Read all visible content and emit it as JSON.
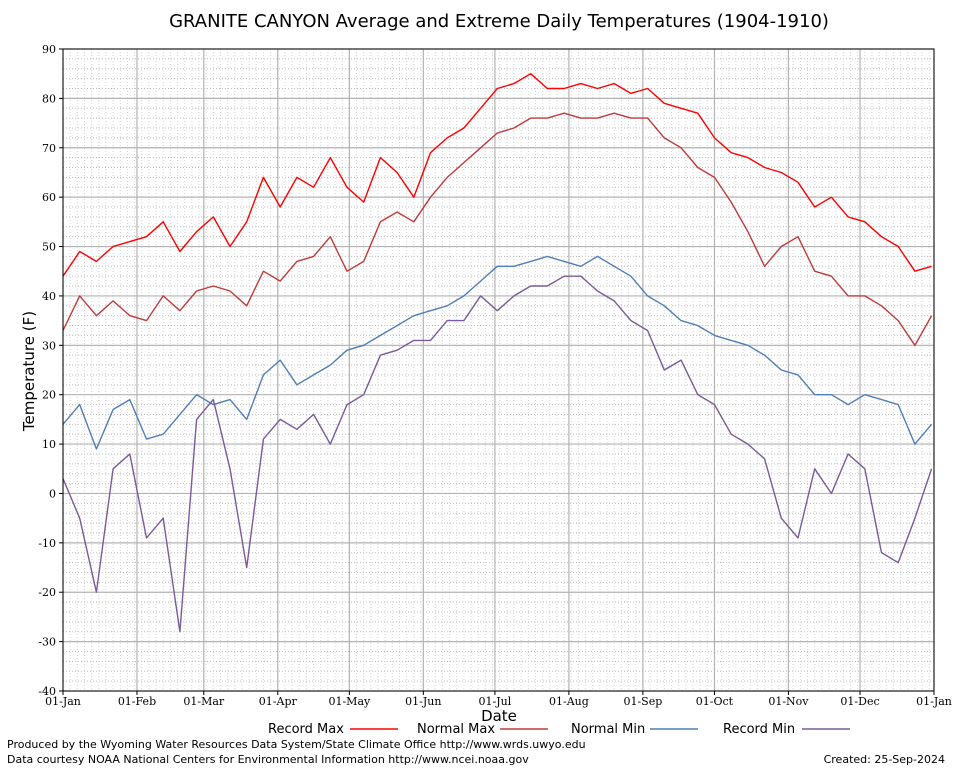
{
  "chart_data": {
    "type": "line",
    "title": "GRANITE CANYON Average and Extreme Daily Temperatures (1904-1910)",
    "xlabel": "Date",
    "ylabel": "Temperature (F)",
    "ylim": [
      -40,
      90
    ],
    "yticks": [
      -40,
      -30,
      -20,
      -10,
      0,
      10,
      20,
      30,
      40,
      50,
      60,
      70,
      80,
      90
    ],
    "xlim": [
      1,
      366
    ],
    "xticks": [
      {
        "day": 1,
        "label": "01-Jan"
      },
      {
        "day": 32,
        "label": "01-Feb"
      },
      {
        "day": 60,
        "label": "01-Mar"
      },
      {
        "day": 91,
        "label": "01-Apr"
      },
      {
        "day": 121,
        "label": "01-May"
      },
      {
        "day": 152,
        "label": "01-Jun"
      },
      {
        "day": 182,
        "label": "01-Jul"
      },
      {
        "day": 213,
        "label": "01-Aug"
      },
      {
        "day": 244,
        "label": "01-Sep"
      },
      {
        "day": 274,
        "label": "01-Oct"
      },
      {
        "day": 305,
        "label": "01-Nov"
      },
      {
        "day": 335,
        "label": "01-Dec"
      },
      {
        "day": 366,
        "label": "01-Jan"
      }
    ],
    "grid": true,
    "legend_position": "bottom",
    "series": [
      {
        "name": "Record Max",
        "color": "#ff0000",
        "x": [
          1,
          8,
          15,
          22,
          29,
          36,
          43,
          50,
          57,
          64,
          71,
          78,
          85,
          92,
          99,
          106,
          113,
          120,
          127,
          134,
          141,
          148,
          155,
          162,
          169,
          176,
          183,
          190,
          197,
          204,
          211,
          218,
          225,
          232,
          239,
          246,
          253,
          260,
          267,
          274,
          281,
          288,
          295,
          302,
          309,
          316,
          323,
          330,
          337,
          344,
          351,
          358,
          365
        ],
        "y": [
          44,
          49,
          47,
          50,
          51,
          52,
          55,
          49,
          53,
          56,
          50,
          55,
          64,
          58,
          64,
          62,
          68,
          62,
          59,
          68,
          65,
          60,
          69,
          72,
          74,
          78,
          82,
          83,
          85,
          82,
          82,
          83,
          82,
          83,
          81,
          82,
          79,
          78,
          77,
          72,
          69,
          68,
          66,
          65,
          63,
          58,
          60,
          56,
          55,
          52,
          50,
          45,
          46
        ]
      },
      {
        "name": "Normal Max",
        "color": "#c03a3a",
        "x": [
          1,
          8,
          15,
          22,
          29,
          36,
          43,
          50,
          57,
          64,
          71,
          78,
          85,
          92,
          99,
          106,
          113,
          120,
          127,
          134,
          141,
          148,
          155,
          162,
          169,
          176,
          183,
          190,
          197,
          204,
          211,
          218,
          225,
          232,
          239,
          246,
          253,
          260,
          267,
          274,
          281,
          288,
          295,
          302,
          309,
          316,
          323,
          330,
          337,
          344,
          351,
          358,
          365
        ],
        "y": [
          33,
          40,
          36,
          39,
          36,
          35,
          40,
          37,
          41,
          42,
          41,
          38,
          45,
          43,
          47,
          48,
          52,
          45,
          47,
          55,
          57,
          55,
          60,
          64,
          67,
          70,
          73,
          74,
          76,
          76,
          77,
          76,
          76,
          77,
          76,
          76,
          72,
          70,
          66,
          64,
          59,
          53,
          46,
          50,
          52,
          45,
          44,
          40,
          40,
          38,
          35,
          30,
          36
        ]
      },
      {
        "name": "Normal Min",
        "color": "#4f7fb8",
        "x": [
          1,
          8,
          15,
          22,
          29,
          36,
          43,
          50,
          57,
          64,
          71,
          78,
          85,
          92,
          99,
          106,
          113,
          120,
          127,
          134,
          141,
          148,
          155,
          162,
          169,
          176,
          183,
          190,
          197,
          204,
          211,
          218,
          225,
          232,
          239,
          246,
          253,
          260,
          267,
          274,
          281,
          288,
          295,
          302,
          309,
          316,
          323,
          330,
          337,
          344,
          351,
          358,
          365
        ],
        "y": [
          14,
          18,
          9,
          17,
          19,
          11,
          12,
          16,
          20,
          18,
          19,
          15,
          24,
          27,
          22,
          24,
          26,
          29,
          30,
          32,
          34,
          36,
          37,
          38,
          40,
          43,
          46,
          46,
          47,
          48,
          47,
          46,
          48,
          46,
          44,
          40,
          38,
          35,
          34,
          32,
          31,
          30,
          28,
          25,
          24,
          20,
          20,
          18,
          20,
          19,
          18,
          10,
          14
        ]
      },
      {
        "name": "Record Min",
        "color": "#7a5a9a",
        "x": [
          1,
          8,
          15,
          22,
          29,
          36,
          43,
          50,
          57,
          64,
          71,
          78,
          85,
          92,
          99,
          106,
          113,
          120,
          127,
          134,
          141,
          148,
          155,
          162,
          169,
          176,
          183,
          190,
          197,
          204,
          211,
          218,
          225,
          232,
          239,
          246,
          253,
          260,
          267,
          274,
          281,
          288,
          295,
          302,
          309,
          316,
          323,
          330,
          337,
          344,
          351,
          358,
          365
        ],
        "y": [
          3,
          -5,
          -20,
          5,
          8,
          -9,
          -5,
          -28,
          15,
          19,
          5,
          -15,
          11,
          15,
          13,
          16,
          10,
          18,
          20,
          28,
          29,
          31,
          31,
          35,
          35,
          40,
          37,
          40,
          42,
          42,
          44,
          44,
          41,
          39,
          35,
          33,
          25,
          27,
          20,
          18,
          12,
          10,
          7,
          -5,
          -9,
          5,
          0,
          8,
          5,
          -12,
          -14,
          -5,
          5
        ]
      }
    ]
  },
  "legend": [
    {
      "label": "Record Max",
      "color": "#ff0000"
    },
    {
      "label": "Normal Max",
      "color": "#c03a3a"
    },
    {
      "label": "Normal Min",
      "color": "#4f7fb8"
    },
    {
      "label": "Record Min",
      "color": "#7a5a9a"
    }
  ],
  "footer": {
    "produced": "Produced by the Wyoming Water Resources Data System/State Climate Office http://www.wrds.uwyo.edu",
    "courtesy": "Data courtesy NOAA National Centers for Environmental Information http://www.ncei.noaa.gov",
    "created": "Created:  25-Sep-2024"
  }
}
